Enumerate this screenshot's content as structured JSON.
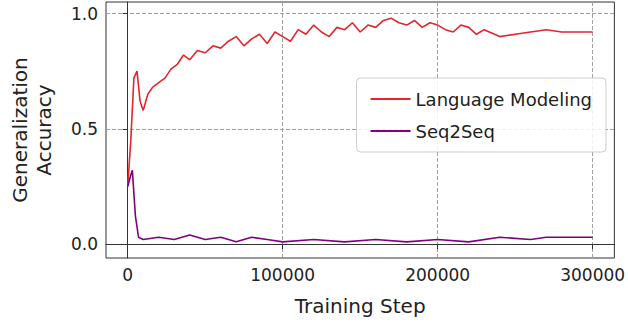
{
  "chart_data": {
    "type": "line",
    "xlabel": "Training Step",
    "ylabel": "Generalization\nAccuracy",
    "xlim": [
      -14000,
      314000
    ],
    "xticks": [
      0,
      100000,
      200000,
      300000
    ],
    "ylim": [
      -0.06,
      1.05
    ],
    "yticks": [
      {
        "value": 0,
        "label": "0.0"
      },
      {
        "value": 0.5,
        "label": "0.5"
      },
      {
        "value": 1,
        "label": "1.0"
      }
    ],
    "grid": true,
    "legend": "right",
    "series": [
      {
        "name": "Language Modeling",
        "color": "#e3262b",
        "x": [
          0,
          2000,
          4000,
          6000,
          8000,
          10000,
          13000,
          16000,
          20000,
          24000,
          28000,
          32000,
          36000,
          40000,
          45000,
          50000,
          55000,
          60000,
          65000,
          70000,
          75000,
          80000,
          85000,
          90000,
          95000,
          100000,
          105000,
          110000,
          115000,
          120000,
          125000,
          130000,
          135000,
          140000,
          145000,
          150000,
          155000,
          160000,
          165000,
          170000,
          175000,
          180000,
          185000,
          190000,
          195000,
          200000,
          205000,
          210000,
          215000,
          220000,
          225000,
          230000,
          240000,
          250000,
          260000,
          270000,
          280000,
          290000,
          300000
        ],
        "values": [
          0.25,
          0.45,
          0.72,
          0.75,
          0.62,
          0.58,
          0.65,
          0.68,
          0.7,
          0.72,
          0.76,
          0.78,
          0.82,
          0.8,
          0.84,
          0.83,
          0.86,
          0.85,
          0.88,
          0.9,
          0.86,
          0.89,
          0.91,
          0.87,
          0.92,
          0.9,
          0.88,
          0.93,
          0.91,
          0.95,
          0.92,
          0.9,
          0.94,
          0.93,
          0.96,
          0.92,
          0.95,
          0.94,
          0.97,
          0.98,
          0.96,
          0.95,
          0.97,
          0.94,
          0.96,
          0.95,
          0.93,
          0.92,
          0.95,
          0.94,
          0.91,
          0.93,
          0.9,
          0.91,
          0.92,
          0.93,
          0.92,
          0.92,
          0.92
        ]
      },
      {
        "name": "Seq2Seq",
        "color": "#800080",
        "x": [
          0,
          2000,
          3000,
          5000,
          7000,
          10000,
          20000,
          30000,
          40000,
          50000,
          60000,
          70000,
          80000,
          90000,
          100000,
          120000,
          140000,
          160000,
          180000,
          200000,
          220000,
          240000,
          260000,
          270000,
          280000,
          290000,
          300000
        ],
        "values": [
          0.25,
          0.3,
          0.32,
          0.12,
          0.03,
          0.02,
          0.03,
          0.02,
          0.04,
          0.02,
          0.03,
          0.01,
          0.03,
          0.02,
          0.01,
          0.02,
          0.01,
          0.02,
          0.01,
          0.02,
          0.01,
          0.03,
          0.02,
          0.03,
          0.03,
          0.03,
          0.03
        ]
      }
    ]
  }
}
